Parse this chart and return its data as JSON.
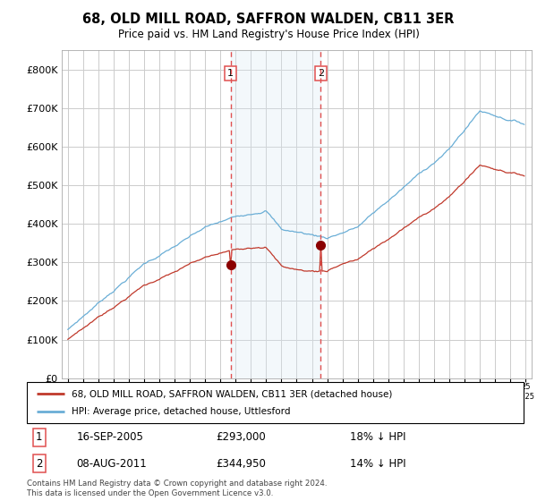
{
  "title": "68, OLD MILL ROAD, SAFFRON WALDEN, CB11 3ER",
  "subtitle": "Price paid vs. HM Land Registry's House Price Index (HPI)",
  "legend_line1": "68, OLD MILL ROAD, SAFFRON WALDEN, CB11 3ER (detached house)",
  "legend_line2": "HPI: Average price, detached house, Uttlesford",
  "transaction1_date": "16-SEP-2005",
  "transaction1_price": 293000,
  "transaction1_pct": "18% ↓ HPI",
  "transaction2_date": "08-AUG-2011",
  "transaction2_price": 344950,
  "transaction2_pct": "14% ↓ HPI",
  "hpi_color": "#6aaed6",
  "price_color": "#c0392b",
  "dot_color": "#8b0000",
  "shading_color": "#daeaf5",
  "grid_color": "#cccccc",
  "background_color": "#ffffff",
  "dashed_color": "#e05050",
  "footnote": "Contains HM Land Registry data © Crown copyright and database right 2024.\nThis data is licensed under the Open Government Licence v3.0.",
  "ylim": [
    0,
    850000
  ],
  "yticks": [
    0,
    100000,
    200000,
    300000,
    400000,
    500000,
    600000,
    700000,
    800000
  ],
  "ytick_labels": [
    "£0",
    "£100K",
    "£200K",
    "£300K",
    "£400K",
    "£500K",
    "£600K",
    "£700K",
    "£800K"
  ]
}
